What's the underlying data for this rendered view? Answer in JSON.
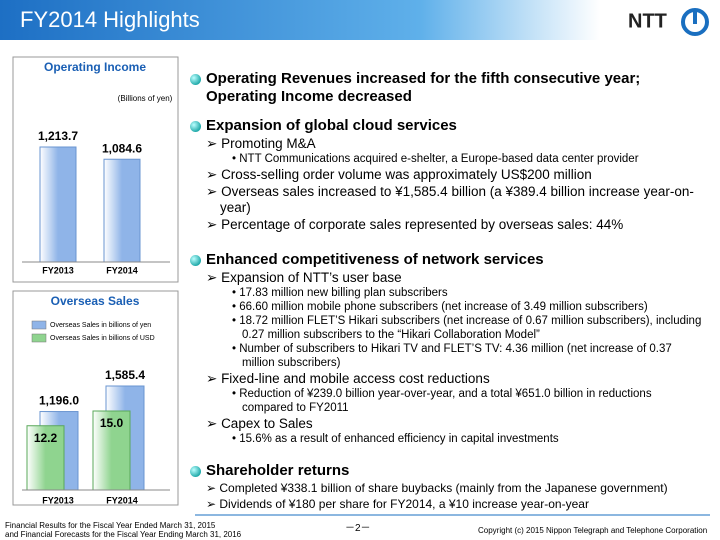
{
  "header": {
    "title": "FY2014 Highlights",
    "logo": "NTT"
  },
  "chart_data": [
    {
      "type": "bar",
      "title": "Operating Income",
      "unit": "(Billions of yen)",
      "categories": [
        "FY2013",
        "FY2014"
      ],
      "values": [
        1213.7,
        1084.6
      ],
      "value_labels": [
        "1,213.7",
        "1,084.6"
      ],
      "color": "#8fb4e8"
    },
    {
      "type": "overlap-bar",
      "title": "Overseas Sales",
      "categories": [
        "FY2013",
        "FY2014"
      ],
      "series": [
        {
          "name": "Overseas Sales in billions of yen",
          "color": "#8fb4e8",
          "values": [
            1196.0,
            1585.4
          ],
          "value_labels": [
            "1,196.0",
            "1,585.4"
          ]
        },
        {
          "name": "Overseas Sales in billions of USD",
          "color": "#8fd48f",
          "values": [
            12.2,
            15.0
          ],
          "value_labels": [
            "12.2",
            "15.0"
          ],
          "axis": "y2"
        }
      ]
    }
  ],
  "sections": [
    {
      "heading": [
        "Operating Revenues increased for the fifth consecutive year;",
        "Operating Income decreased"
      ],
      "items": []
    },
    {
      "heading": [
        "Expansion of global cloud services"
      ],
      "items": [
        {
          "text": "Promoting M&A",
          "sub": [
            "NTT Communications acquired e-shelter, a Europe-based data center provider"
          ]
        },
        {
          "text": "Cross-selling order volume was approximately US$200 million",
          "sub": []
        },
        {
          "text": "Overseas sales increased to ¥1,585.4 billion (a ¥389.4 billion increase year-on-year)",
          "sub": []
        },
        {
          "text": "Percentage of corporate sales represented by overseas sales: 44%",
          "sub": []
        }
      ]
    },
    {
      "heading": [
        "Enhanced competitiveness of network services"
      ],
      "items": [
        {
          "text": "Expansion of NTT’s user base",
          "sub": [
            "17.83 million new billing plan subscribers",
            "66.60 million mobile phone subscribers (net increase of 3.49 million subscribers)",
            "18.72 million FLET’S Hikari subscribers (net increase of 0.67 million subscribers), including 0.27 million subscribers to the “Hikari Collaboration Model”",
            "Number of subscribers to Hikari TV and FLET’S TV: 4.36 million (net increase of 0.37 million subscribers)"
          ]
        },
        {
          "text": "Fixed-line and mobile access cost reductions",
          "sub": [
            "Reduction of ¥239.0 billion year-over-year,  and a total ¥651.0 billion in reductions compared to FY2011"
          ]
        },
        {
          "text": "Capex to Sales",
          "sub": [
            "15.6% as a result of enhanced efficiency in capital investments"
          ]
        }
      ]
    },
    {
      "heading": [
        "Shareholder returns"
      ],
      "items": [
        {
          "text": "Completed ¥338.1 billion of share buybacks (mainly from the Japanese government)",
          "sub": []
        },
        {
          "text": "Dividends of ¥180 per share for FY2014, a ¥10 increase year-on-year",
          "sub": []
        }
      ]
    }
  ],
  "footer": {
    "left": [
      "Financial Results for the Fiscal Year Ended March 31, 2015",
      "and Financial Forecasts for the Fiscal Year Ending March 31, 2016"
    ],
    "page": "－2－",
    "copyright": "Copyright (c) 2015  Nippon Telegraph and Telephone Corporation"
  }
}
